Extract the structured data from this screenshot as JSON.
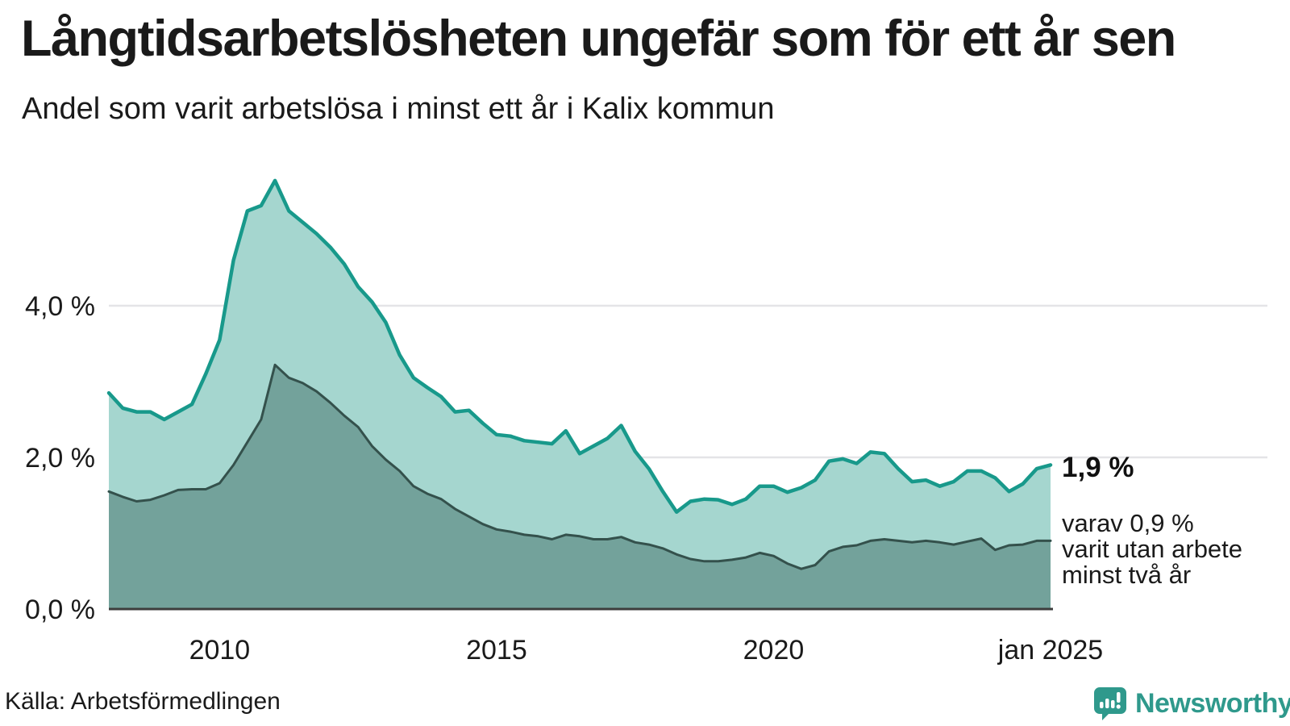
{
  "title": "Långtidsarbetslösheten ungefär som för ett år sen",
  "subtitle": "Andel som varit arbetslösa i minst ett år i Kalix kommun",
  "source": "Källa: Arbetsförmedlingen",
  "branding": {
    "name": "Newsworthy",
    "icon": "newsworthy-chart-bubble-icon",
    "color": "#2f998c"
  },
  "annotation": {
    "value_label": "1,9 %",
    "detail_lines": [
      "varav 0,9 %",
      "varit utan arbete",
      "minst två år"
    ]
  },
  "colors": {
    "text": "#1a1a1a",
    "grid": "#e4e4e7",
    "axis": "#3d3d3d",
    "upper_line": "#18998b",
    "upper_fill": "#a5d6cf",
    "lower_line": "#34514c",
    "lower_fill": "#73a29b",
    "background": "#ffffff"
  },
  "chart_data": {
    "type": "area",
    "title": "Långtidsarbetslösheten ungefär som för ett år sen",
    "subtitle": "Andel som varit arbetslösa i minst ett år i Kalix kommun",
    "x_unit": "decimal_year_monthly_series_sampled_quarterly",
    "xlim": [
      2008.0,
      2025.0
    ],
    "ylim": [
      0,
      6.1
    ],
    "grid": "horizontal",
    "legend": "none",
    "x": [
      2008.0,
      2008.25,
      2008.5,
      2008.75,
      2009.0,
      2009.25,
      2009.5,
      2009.75,
      2010.0,
      2010.25,
      2010.5,
      2010.75,
      2011.0,
      2011.25,
      2011.5,
      2011.75,
      2012.0,
      2012.25,
      2012.5,
      2012.75,
      2013.0,
      2013.25,
      2013.5,
      2013.75,
      2014.0,
      2014.25,
      2014.5,
      2014.75,
      2015.0,
      2015.25,
      2015.5,
      2015.75,
      2016.0,
      2016.25,
      2016.5,
      2016.75,
      2017.0,
      2017.25,
      2017.5,
      2017.75,
      2018.0,
      2018.25,
      2018.5,
      2018.75,
      2019.0,
      2019.25,
      2019.5,
      2019.75,
      2020.0,
      2020.25,
      2020.5,
      2020.75,
      2021.0,
      2021.25,
      2021.5,
      2021.75,
      2022.0,
      2022.25,
      2022.5,
      2022.75,
      2023.0,
      2023.25,
      2023.5,
      2023.75,
      2024.0,
      2024.25,
      2024.5,
      2024.75,
      2025.0
    ],
    "series": [
      {
        "name": "Arbetslösa minst ett år (andel, %)",
        "role": "upper",
        "values": [
          2.85,
          2.65,
          2.6,
          2.6,
          2.5,
          2.6,
          2.7,
          3.1,
          3.55,
          4.6,
          5.25,
          5.32,
          5.65,
          5.25,
          5.1,
          4.95,
          4.77,
          4.55,
          4.25,
          4.05,
          3.78,
          3.35,
          3.05,
          2.92,
          2.8,
          2.6,
          2.62,
          2.45,
          2.3,
          2.28,
          2.22,
          2.2,
          2.18,
          2.35,
          2.05,
          2.15,
          2.25,
          2.42,
          2.08,
          1.85,
          1.55,
          1.28,
          1.42,
          1.45,
          1.44,
          1.38,
          1.45,
          1.62,
          1.62,
          1.54,
          1.6,
          1.7,
          1.95,
          1.98,
          1.92,
          2.07,
          2.05,
          1.85,
          1.68,
          1.7,
          1.62,
          1.68,
          1.82,
          1.82,
          1.73,
          1.55,
          1.65,
          1.85,
          1.9
        ]
      },
      {
        "name": "varav utan arbete minst två år (andel, %)",
        "role": "lower",
        "values": [
          1.55,
          1.48,
          1.42,
          1.44,
          1.5,
          1.57,
          1.58,
          1.58,
          1.66,
          1.9,
          2.2,
          2.5,
          3.22,
          3.05,
          2.98,
          2.87,
          2.72,
          2.55,
          2.4,
          2.15,
          1.97,
          1.82,
          1.62,
          1.52,
          1.45,
          1.32,
          1.22,
          1.12,
          1.05,
          1.02,
          0.98,
          0.96,
          0.92,
          0.98,
          0.96,
          0.92,
          0.92,
          0.95,
          0.88,
          0.85,
          0.8,
          0.72,
          0.66,
          0.63,
          0.63,
          0.65,
          0.68,
          0.74,
          0.7,
          0.6,
          0.53,
          0.58,
          0.76,
          0.82,
          0.84,
          0.9,
          0.92,
          0.9,
          0.88,
          0.9,
          0.88,
          0.85,
          0.89,
          0.93,
          0.78,
          0.84,
          0.85,
          0.9,
          0.9
        ]
      }
    ],
    "yticks": [
      {
        "value": 0,
        "label": "0,0 %"
      },
      {
        "value": 2,
        "label": "2,0 %"
      },
      {
        "value": 4,
        "label": "4,0 %"
      }
    ],
    "xticks": [
      {
        "value": 2010,
        "label": "2010"
      },
      {
        "value": 2015,
        "label": "2015"
      },
      {
        "value": 2020,
        "label": "2020"
      },
      {
        "value": 2025,
        "label": "jan 2025"
      }
    ],
    "last_values": {
      "total_min_one_year_pct": 1.9,
      "min_two_years_pct": 0.9
    }
  }
}
